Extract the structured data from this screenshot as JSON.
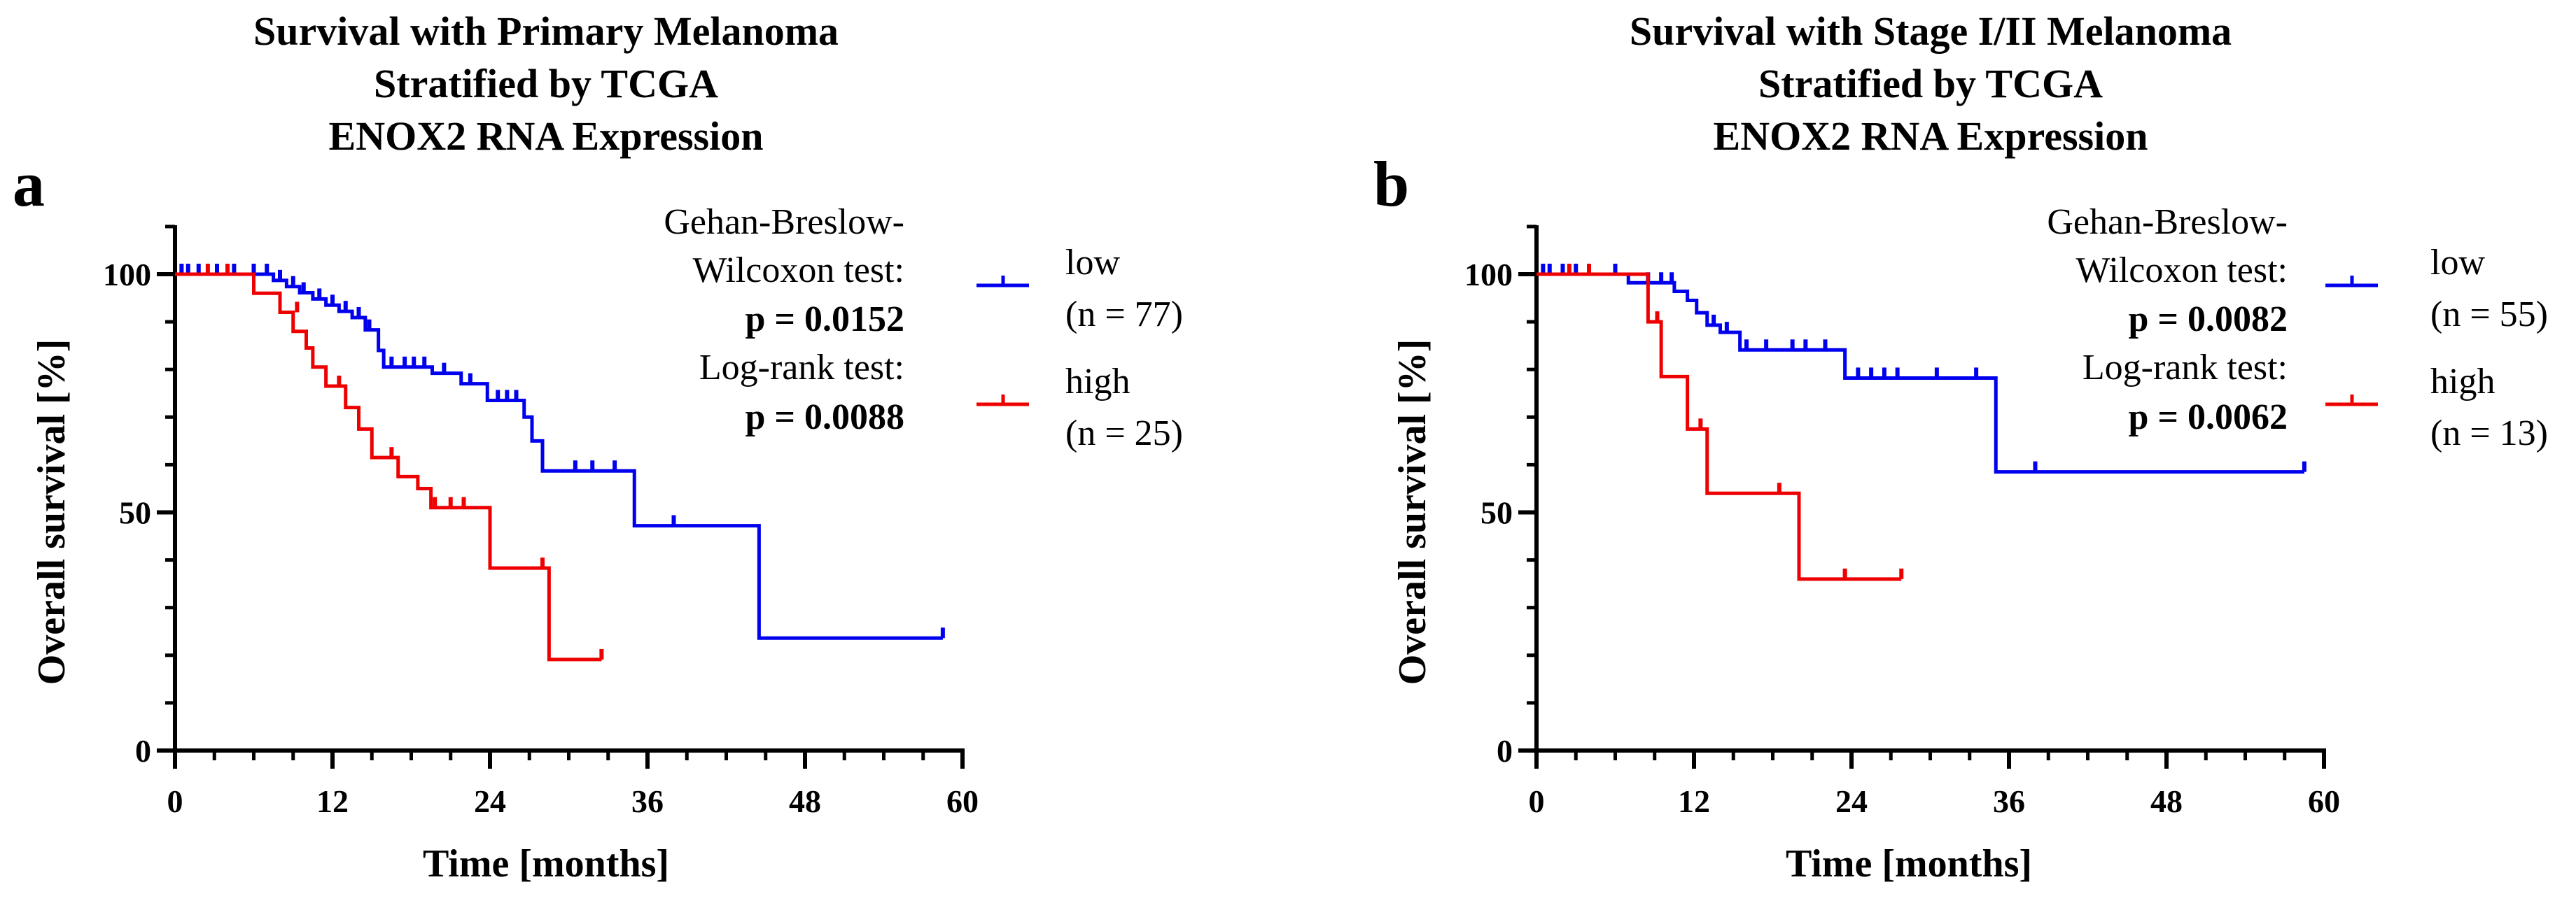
{
  "chart_data": [
    {
      "type": "line",
      "panel_label": "a",
      "title_lines": [
        "Survival with Primary Melanoma",
        "Stratified by TCGA",
        "ENOX2 RNA Expression"
      ],
      "xlabel": "Time [months]",
      "ylabel": "Overall survival [%]",
      "xlim": [
        0,
        60
      ],
      "ylim": [
        0,
        100
      ],
      "x_ticks": [
        0,
        12,
        24,
        36,
        48,
        60
      ],
      "y_ticks": [
        0,
        50,
        100
      ],
      "grid": false,
      "stats": {
        "test1_line1": "Gehan-Breslow-",
        "test1_line2": "Wilcoxon test:",
        "test1_p": "p = 0.0152",
        "test2_line1": "Log-rank test:",
        "test2_p": "p = 0.0088"
      },
      "series": [
        {
          "name": "low",
          "n_label": "(n = 77)",
          "color": "#0000ee",
          "steps": [
            [
              0,
              100
            ],
            [
              7.5,
              98.7
            ],
            [
              8.5,
              97.4
            ],
            [
              9.5,
              96.1
            ],
            [
              10.5,
              94.8
            ],
            [
              11.5,
              93.5
            ],
            [
              12.5,
              92.2
            ],
            [
              13.5,
              90.9
            ],
            [
              14.5,
              88.3
            ],
            [
              15.5,
              84
            ],
            [
              15.9,
              80.5
            ],
            [
              19.6,
              79.2
            ],
            [
              21.8,
              77
            ],
            [
              23.8,
              73.5
            ],
            [
              26.6,
              70
            ],
            [
              27.2,
              65
            ],
            [
              28,
              58.7
            ],
            [
              35,
              47.2
            ],
            [
              44.5,
              23.6
            ],
            [
              58.5,
              23.6
            ]
          ],
          "censors": [
            [
              0.5,
              100
            ],
            [
              1,
              100
            ],
            [
              1.8,
              100
            ],
            [
              3.2,
              100
            ],
            [
              4.5,
              100
            ],
            [
              6,
              100
            ],
            [
              7,
              100
            ],
            [
              8,
              98.7
            ],
            [
              9,
              97.4
            ],
            [
              9.8,
              96.1
            ],
            [
              11,
              94.8
            ],
            [
              12,
              93.5
            ],
            [
              13,
              92.2
            ],
            [
              14,
              90.9
            ],
            [
              14.8,
              88.3
            ],
            [
              16.5,
              80.5
            ],
            [
              17.5,
              80.5
            ],
            [
              18.2,
              80.5
            ],
            [
              19,
              80.5
            ],
            [
              20.5,
              79.2
            ],
            [
              22.5,
              77
            ],
            [
              24.6,
              73.5
            ],
            [
              25.3,
              73.5
            ],
            [
              26,
              73.5
            ],
            [
              30.5,
              58.7
            ],
            [
              31.8,
              58.7
            ],
            [
              33.5,
              58.7
            ],
            [
              38,
              47.2
            ],
            [
              58.5,
              23.6
            ]
          ]
        },
        {
          "name": "high",
          "n_label": "(n = 25)",
          "color": "#ee0000",
          "steps": [
            [
              0,
              100
            ],
            [
              6,
              96
            ],
            [
              8,
              92
            ],
            [
              9,
              88
            ],
            [
              10,
              84.5
            ],
            [
              10.5,
              80.5
            ],
            [
              11.5,
              76.5
            ],
            [
              13,
              72
            ],
            [
              14,
              67.5
            ],
            [
              15,
              61.5
            ],
            [
              17,
              57.5
            ],
            [
              18.5,
              55
            ],
            [
              19.5,
              51
            ],
            [
              24,
              38.3
            ],
            [
              28.5,
              19.1
            ],
            [
              32.5,
              19.1
            ]
          ],
          "censors": [
            [
              2.5,
              100
            ],
            [
              4,
              100
            ],
            [
              9.3,
              92
            ],
            [
              12.5,
              76.5
            ],
            [
              16.5,
              61.5
            ],
            [
              19.8,
              51
            ],
            [
              21,
              51
            ],
            [
              22,
              51
            ],
            [
              28,
              38.3
            ],
            [
              32.5,
              19.1
            ]
          ]
        }
      ]
    },
    {
      "type": "line",
      "panel_label": "b",
      "title_lines": [
        "Survival with Stage I/II Melanoma",
        "Stratified by TCGA",
        "ENOX2 RNA Expression"
      ],
      "xlabel": "Time [months]",
      "ylabel": "Overall survival [%]",
      "xlim": [
        0,
        60
      ],
      "ylim": [
        0,
        100
      ],
      "x_ticks": [
        0,
        12,
        24,
        36,
        48,
        60
      ],
      "y_ticks": [
        0,
        50,
        100
      ],
      "grid": false,
      "stats": {
        "test1_line1": "Gehan-Breslow-",
        "test1_line2": "Wilcoxon test:",
        "test1_p": "p = 0.0082",
        "test2_line1": "Log-rank test:",
        "test2_p": "p = 0.0062"
      },
      "series": [
        {
          "name": "low",
          "n_label": "(n = 55)",
          "color": "#0000ee",
          "steps": [
            [
              0,
              100
            ],
            [
              7,
              98.2
            ],
            [
              10.5,
              96.4
            ],
            [
              11.5,
              94.5
            ],
            [
              12.2,
              91.9
            ],
            [
              13,
              89.3
            ],
            [
              14,
              87.8
            ],
            [
              15.5,
              84.1
            ],
            [
              23.5,
              78.2
            ],
            [
              35,
              58.5
            ],
            [
              58.5,
              58.5
            ]
          ],
          "censors": [
            [
              0.5,
              100
            ],
            [
              1,
              100
            ],
            [
              2,
              100
            ],
            [
              3,
              100
            ],
            [
              4,
              100
            ],
            [
              6,
              100
            ],
            [
              8.5,
              98.2
            ],
            [
              9.5,
              98.2
            ],
            [
              10.3,
              98.2
            ],
            [
              13.5,
              89.3
            ],
            [
              14.5,
              87.8
            ],
            [
              16,
              84.1
            ],
            [
              17.5,
              84.1
            ],
            [
              19.5,
              84.1
            ],
            [
              20.5,
              84.1
            ],
            [
              22,
              84.1
            ],
            [
              24.5,
              78.2
            ],
            [
              25.5,
              78.2
            ],
            [
              26.5,
              78.2
            ],
            [
              27.5,
              78.2
            ],
            [
              30.5,
              78.2
            ],
            [
              33.5,
              78.2
            ],
            [
              38,
              58.5
            ],
            [
              58.5,
              58.5
            ]
          ]
        },
        {
          "name": "high",
          "n_label": "(n = 13)",
          "color": "#ee0000",
          "steps": [
            [
              0,
              100
            ],
            [
              8.5,
              90
            ],
            [
              9.5,
              78.5
            ],
            [
              11.5,
              67.5
            ],
            [
              13,
              54
            ],
            [
              20,
              36
            ],
            [
              27.8,
              36
            ]
          ],
          "censors": [
            [
              2.5,
              100
            ],
            [
              4,
              100
            ],
            [
              9.2,
              90
            ],
            [
              12.5,
              67.5
            ],
            [
              18.5,
              54
            ],
            [
              23.5,
              36
            ],
            [
              27.8,
              36
            ]
          ]
        }
      ]
    }
  ]
}
